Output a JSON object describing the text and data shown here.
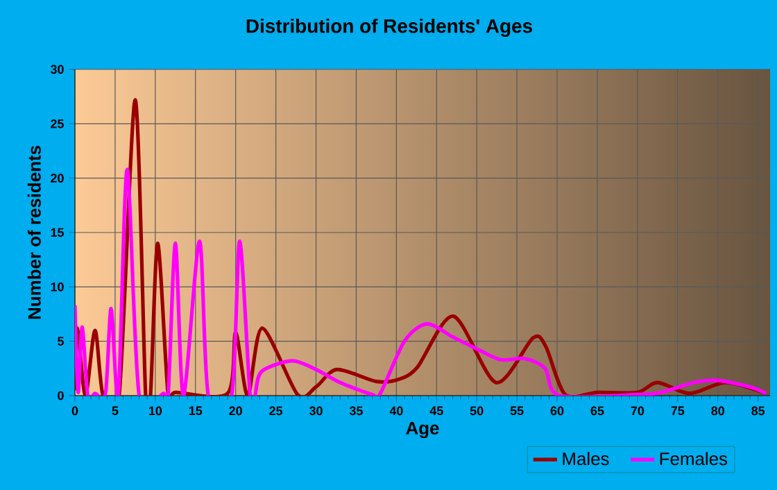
{
  "chart_data": {
    "type": "line",
    "title": "Distribution of Residents' Ages",
    "xlabel": "Age",
    "ylabel": "Number of residents",
    "xlim": [
      0,
      86.5
    ],
    "ylim": [
      0,
      30
    ],
    "xticks": [
      0,
      5,
      10,
      15,
      20,
      25,
      30,
      35,
      40,
      45,
      50,
      55,
      60,
      65,
      70,
      75,
      80,
      85
    ],
    "yticks": [
      0,
      5,
      10,
      15,
      20,
      25,
      30
    ],
    "grid": true,
    "legend": "bottom",
    "marker": "none",
    "line_style": "solid",
    "series": [
      {
        "name": "Males",
        "color": "#990000",
        "x": [
          0,
          0.3,
          1.3,
          2.5,
          3.5,
          5.5,
          7.5,
          8.8,
          9.4,
          10.3,
          11.6,
          12.5,
          19,
          20,
          21.5,
          23.3,
          27.7,
          30,
          32.6,
          37.5,
          40.3,
          42.6,
          47.1,
          52.4,
          57,
          58.6,
          61,
          65,
          70,
          72.5,
          76.5,
          81,
          86
        ],
        "values": [
          0.5,
          6.2,
          0,
          6,
          0,
          0,
          27.2,
          0,
          0,
          14,
          0,
          0.3,
          0.2,
          5.8,
          0,
          6.2,
          0.1,
          0.8,
          2.4,
          1.3,
          1.5,
          2.6,
          7.3,
          1.2,
          5.3,
          4.5,
          0.1,
          0.3,
          0.3,
          1.2,
          0.2,
          1.2,
          0.2
        ]
      },
      {
        "name": "Females",
        "color": "#ff00ff",
        "x": [
          0,
          0.4,
          0.9,
          1.6,
          2.5,
          3.8,
          4.5,
          5.4,
          6.5,
          8,
          11,
          11.6,
          12.5,
          13.5,
          15.5,
          16.6,
          19.5,
          20.5,
          21.8,
          22.4,
          23.2,
          27,
          30,
          33,
          37,
          38,
          41,
          43.8,
          47,
          50,
          53,
          56,
          58.5,
          60.3,
          70,
          73,
          77,
          80,
          84,
          86
        ],
        "values": [
          8.3,
          0.3,
          6.3,
          0,
          0.2,
          0.2,
          8,
          0,
          20.8,
          0,
          0.2,
          0,
          14,
          0,
          14.2,
          0,
          0,
          14.2,
          0,
          0,
          2.2,
          3.2,
          2.4,
          1.2,
          0.1,
          0.2,
          5,
          6.6,
          5.4,
          4.3,
          3.3,
          3.4,
          2.5,
          0,
          0.1,
          0.3,
          1.2,
          1.4,
          0.8,
          0.2
        ]
      }
    ]
  }
}
